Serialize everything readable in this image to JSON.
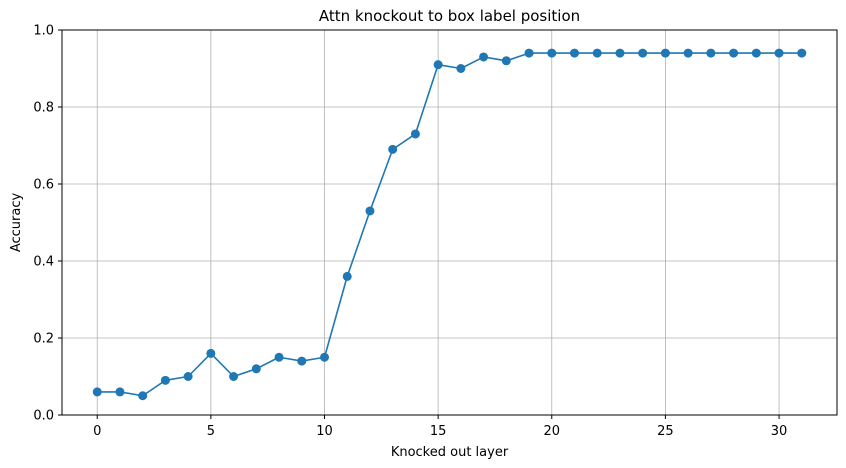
{
  "chart_data": {
    "type": "line",
    "title": "Attn knockout to box label position",
    "xlabel": "Knocked out layer",
    "ylabel": "Accuracy",
    "xlim": [
      -1.55,
      32.55
    ],
    "ylim": [
      0,
      1
    ],
    "xticks": [
      0,
      5,
      10,
      15,
      20,
      25,
      30
    ],
    "xtick_labels": [
      "0",
      "5",
      "10",
      "15",
      "20",
      "25",
      "30"
    ],
    "yticks": [
      0,
      0.2,
      0.4,
      0.6,
      0.8,
      1.0
    ],
    "ytick_labels": [
      "0.0",
      "0.2",
      "0.4",
      "0.6",
      "0.8",
      "1.0"
    ],
    "grid": true,
    "legend": false,
    "series": [
      {
        "color": "#1f77b4",
        "marker": "circle",
        "x": [
          0,
          1,
          2,
          3,
          4,
          5,
          6,
          7,
          8,
          9,
          10,
          11,
          12,
          13,
          14,
          15,
          16,
          17,
          18,
          19,
          20,
          21,
          22,
          23,
          24,
          25,
          26,
          27,
          28,
          29,
          30,
          31
        ],
        "y": [
          0.06,
          0.06,
          0.05,
          0.09,
          0.1,
          0.16,
          0.1,
          0.12,
          0.15,
          0.14,
          0.15,
          0.36,
          0.53,
          0.69,
          0.73,
          0.91,
          0.9,
          0.93,
          0.92,
          0.94,
          0.94,
          0.94,
          0.94,
          0.94,
          0.94,
          0.94,
          0.94,
          0.94,
          0.94,
          0.94,
          0.94,
          0.94
        ]
      }
    ]
  }
}
